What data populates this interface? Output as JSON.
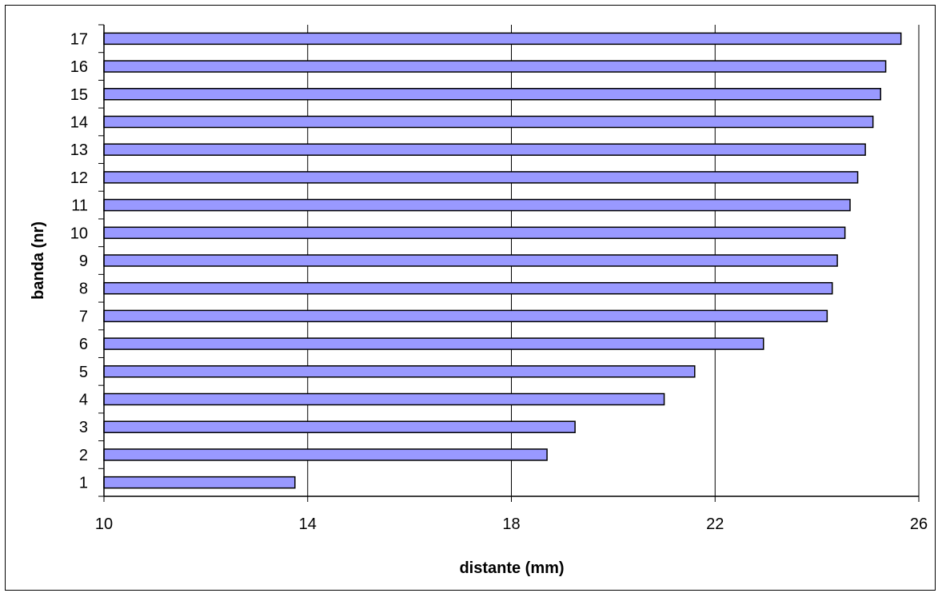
{
  "chart_data": {
    "type": "bar",
    "orientation": "horizontal",
    "categories": [
      "1",
      "2",
      "3",
      "4",
      "5",
      "6",
      "7",
      "8",
      "9",
      "10",
      "11",
      "12",
      "13",
      "14",
      "15",
      "16",
      "17"
    ],
    "series": [
      {
        "values": [
          13.75,
          18.7,
          19.25,
          21.0,
          21.6,
          22.95,
          24.2,
          24.3,
          24.4,
          24.55,
          24.65,
          24.8,
          24.95,
          25.1,
          25.25,
          25.35,
          25.65
        ],
        "color": "#9999ff"
      }
    ],
    "xlabel": "distante (mm)",
    "ylabel": "banda (nr)",
    "xlim": [
      10,
      26
    ],
    "xticks": [
      "10",
      "14",
      "18",
      "22",
      "26"
    ],
    "grid": "vertical",
    "legend": "none",
    "bar_color": "#9999ff",
    "bar_outline": "#000000"
  }
}
